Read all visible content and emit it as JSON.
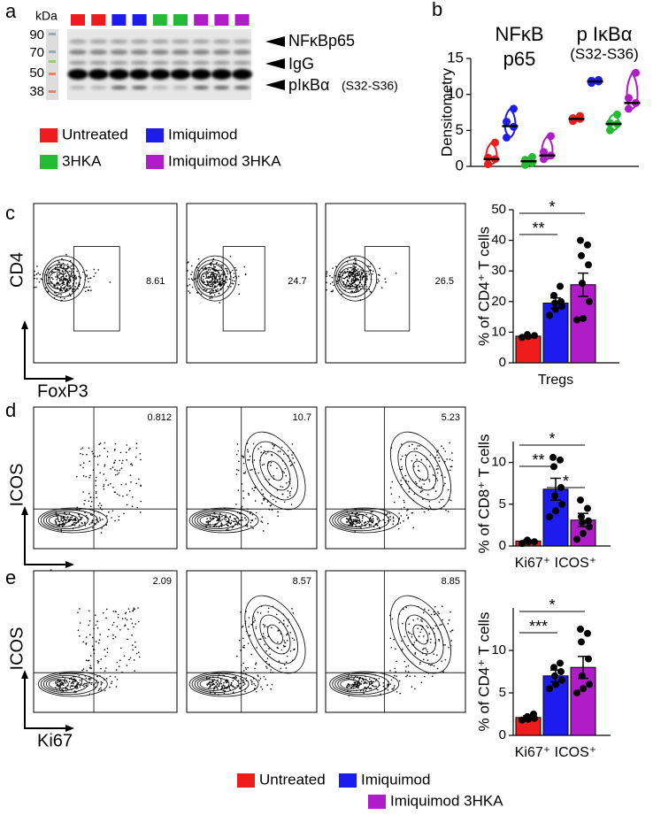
{
  "panels": [
    "a",
    "b",
    "c",
    "d",
    "e"
  ],
  "blot": {
    "kda_label": "kDa",
    "markers": [
      90,
      70,
      50,
      38
    ],
    "lane_colors": [
      "#ee1c1c",
      "#ee1c1c",
      "#1c1cee",
      "#1c1cee",
      "#22bb33",
      "#22bb33",
      "#b01cc8",
      "#b01cc8",
      "#b01cc8"
    ],
    "bands": [
      {
        "label": "NFκBp65"
      },
      {
        "label": "IgG"
      },
      {
        "label": "pIκBα",
        "note": "(S32-S36)"
      }
    ]
  },
  "legend_top": [
    {
      "name": "Untreated",
      "color": "#ee1c1c"
    },
    {
      "name": "Imiquimod",
      "color": "#1c1cee"
    },
    {
      "name": "3HKA",
      "color": "#22bb33"
    },
    {
      "name": "Imiquimod 3HKA",
      "color": "#b01cc8"
    }
  ],
  "flow": [
    {
      "y_label": "CD4",
      "x_label": "FoxP3",
      "gates": [
        8.61,
        24.7,
        26.5
      ]
    },
    {
      "y_label": "ICOS",
      "x_label": "Ki67",
      "gates": [
        0.812,
        10.7,
        5.23
      ]
    },
    {
      "y_label": "ICOS",
      "x_label": "Ki67",
      "gates": [
        2.09,
        8.57,
        8.85
      ]
    }
  ],
  "legend_bottom": [
    {
      "name": "Untreated",
      "color": "#ee1c1c"
    },
    {
      "name": "Imiquimod",
      "color": "#1c1cee"
    },
    {
      "name": "Imiquimod 3HKA",
      "color": "#b01cc8"
    }
  ],
  "chart_data": [
    {
      "type": "violin",
      "y_label": "Densitometry",
      "categories": [
        [
          "NFκB",
          "p65"
        ],
        [
          "p IκBα",
          "(S32-S36)"
        ]
      ],
      "series": [
        {
          "name": "Untreated",
          "color": "#ee1c1c",
          "values": [
            1.0,
            6.6
          ],
          "points": [
            [
              0.3,
              1.0,
              1.2,
              3.3
            ],
            [
              6.3,
              6.6,
              6.7,
              7.0
            ]
          ]
        },
        {
          "name": "Imiquimod",
          "color": "#1c1cee",
          "values": [
            5.6,
            11.8
          ],
          "points": [
            [
              4.0,
              5.5,
              6.2,
              8.0
            ],
            [
              11.6,
              11.8,
              11.9,
              12.0
            ]
          ]
        },
        {
          "name": "3HKA",
          "color": "#22bb33",
          "values": [
            0.7,
            5.9
          ],
          "points": [
            [
              0.2,
              0.5,
              0.9,
              1.3
            ],
            [
              5.0,
              5.9,
              6.0,
              7.2
            ]
          ]
        },
        {
          "name": "Imiquimod 3HKA",
          "color": "#b01cc8",
          "values": [
            1.5,
            8.8
          ],
          "points": [
            [
              1.0,
              1.5,
              2.0,
              4.2
            ],
            [
              8.0,
              8.8,
              9.5,
              13.0
            ]
          ]
        }
      ],
      "ylim": [
        0,
        15
      ],
      "yticks": [
        0,
        5,
        10,
        15
      ]
    },
    {
      "type": "bar",
      "y_label": "% of CD4⁺ T cells",
      "categories": [
        "Tregs"
      ],
      "series": [
        {
          "name": "Untreated",
          "color": "#ee1c1c",
          "values": [
            8.7
          ],
          "errors": [
            0.3
          ],
          "points": [
            [
              8.3,
              8.6,
              8.9,
              9.2
            ]
          ]
        },
        {
          "name": "Imiquimod",
          "color": "#1c1cee",
          "values": [
            19.5
          ],
          "errors": [
            1.7
          ],
          "points": [
            [
              15.5,
              17.5,
              18.5,
              19.5,
              20,
              22,
              25
            ]
          ]
        },
        {
          "name": "Imiquimod 3HKA",
          "color": "#b01cc8",
          "values": [
            25.5
          ],
          "errors": [
            3.8
          ],
          "points": [
            [
              14,
              14.5,
              20,
              26,
              32,
              35,
              38.5,
              40
            ]
          ]
        }
      ],
      "ylim": [
        0,
        50
      ],
      "yticks": [
        0,
        10,
        20,
        30,
        40,
        50
      ],
      "significance": [
        {
          "label": "*",
          "between": [
            0,
            2
          ]
        },
        {
          "label": "**",
          "between": [
            0,
            1
          ]
        }
      ]
    },
    {
      "type": "bar",
      "y_label": "% of CD8⁺ T cells",
      "categories": [
        "Ki67⁺ ICOS⁺"
      ],
      "series": [
        {
          "name": "Untreated",
          "color": "#ee1c1c",
          "values": [
            0.6
          ],
          "errors": [
            0.1
          ],
          "points": [
            [
              0.3,
              0.5,
              0.5,
              0.7
            ]
          ]
        },
        {
          "name": "Imiquimod",
          "color": "#1c1cee",
          "values": [
            6.8
          ],
          "errors": [
            1.3
          ],
          "points": [
            [
              3.5,
              4.2,
              5,
              6,
              7,
              9.5,
              10.3,
              10.6
            ]
          ]
        },
        {
          "name": "Imiquimod 3HKA",
          "color": "#b01cc8",
          "values": [
            3.1
          ],
          "errors": [
            0.8
          ],
          "points": [
            [
              0.8,
              1.5,
              2.3,
              2.8,
              3,
              3.5,
              4.5,
              5.5
            ]
          ]
        }
      ],
      "ylim": [
        0,
        12.5
      ],
      "yticks": [
        0,
        5,
        10
      ],
      "significance": [
        {
          "label": "*",
          "between": [
            0,
            2
          ]
        },
        {
          "label": "**",
          "between": [
            0,
            1
          ]
        },
        {
          "label": "*",
          "between": [
            1,
            2
          ]
        }
      ]
    },
    {
      "type": "bar",
      "y_label": "% of CD4⁺ T cells",
      "categories": [
        "Ki67⁺ ICOS⁺"
      ],
      "series": [
        {
          "name": "Untreated",
          "color": "#ee1c1c",
          "values": [
            2.1
          ],
          "errors": [
            0.2
          ],
          "points": [
            [
              1.8,
              1.9,
              2,
              2.2,
              2.5
            ]
          ]
        },
        {
          "name": "Imiquimod",
          "color": "#1c1cee",
          "values": [
            7.0
          ],
          "errors": [
            0.7
          ],
          "points": [
            [
              5.5,
              6,
              6.5,
              7,
              7.5,
              8,
              8.5
            ]
          ]
        },
        {
          "name": "Imiquimod 3HKA",
          "color": "#b01cc8",
          "values": [
            8.0
          ],
          "errors": [
            1.3
          ],
          "points": [
            [
              5,
              5.5,
              6,
              7,
              9,
              11,
              12,
              12.5
            ]
          ]
        }
      ],
      "ylim": [
        0,
        15
      ],
      "yticks": [
        0,
        5,
        10
      ],
      "significance": [
        {
          "label": "*",
          "between": [
            0,
            2
          ]
        },
        {
          "label": "***",
          "between": [
            0,
            1
          ]
        }
      ]
    }
  ]
}
